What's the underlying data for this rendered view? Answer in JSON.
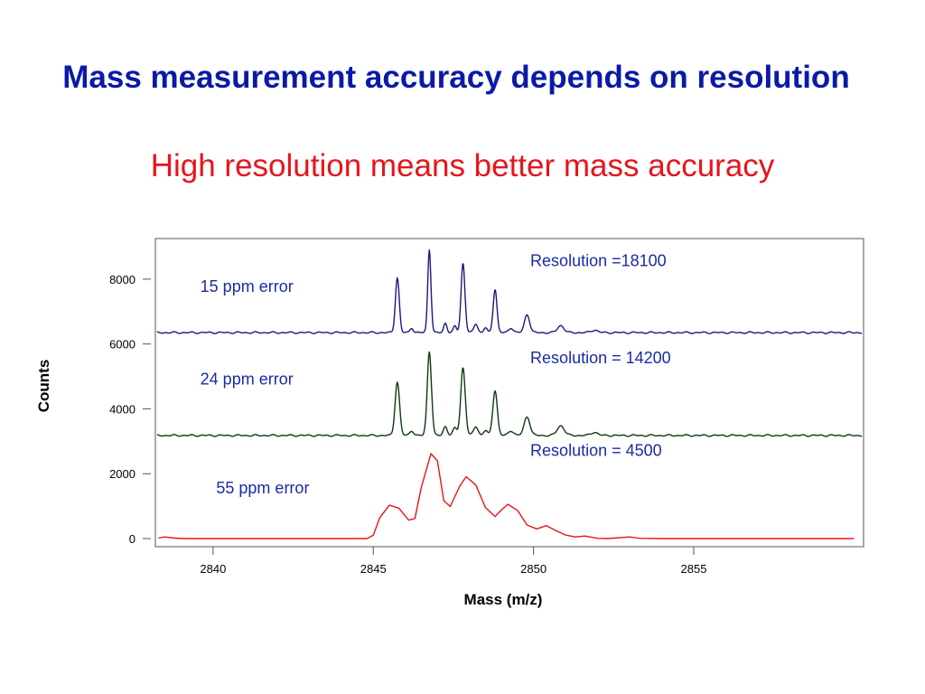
{
  "slide": {
    "title": "Mass measurement accuracy depends on resolution",
    "subtitle": "High resolution means better mass accuracy"
  },
  "colors": {
    "title": "#0a1aa8",
    "subtitle": "#e8141c",
    "series_top": "#1a1a80",
    "series_mid": "#0f3a0f",
    "series_bottom": "#e8141c",
    "annotation": "#1a2aa8",
    "axis": "#555555"
  },
  "chart_data": {
    "type": "line",
    "xlabel": "Mass (m/z)",
    "ylabel": "Counts",
    "xlim": [
      2838.2,
      2860.3
    ],
    "ylim": [
      -250,
      9250
    ],
    "x_ticks": [
      "2840",
      "2845",
      "2850",
      "2855"
    ],
    "x_tick_values": [
      2840,
      2845,
      2850,
      2855
    ],
    "y_ticks": [
      "0",
      "2000",
      "4000",
      "6000",
      "8000"
    ],
    "y_tick_values": [
      0,
      2000,
      4000,
      6000,
      8000
    ],
    "grid": false,
    "annotations": [
      {
        "text": "Resolution =18100",
        "x": 2849.9,
        "y": 8400
      },
      {
        "text": "15 ppm error",
        "x": 2839.6,
        "y": 7600
      },
      {
        "text": "Resolution = 14200",
        "x": 2849.9,
        "y": 5400
      },
      {
        "text": "24 ppm error",
        "x": 2839.6,
        "y": 4750
      },
      {
        "text": "Resolution = 4500",
        "x": 2849.9,
        "y": 2550
      },
      {
        "text": "55 ppm error",
        "x": 2840.1,
        "y": 1400
      }
    ],
    "series": [
      {
        "key": "top",
        "baseline": 6350,
        "noise": 30,
        "peaks": [
          {
            "x": 2845.75,
            "h": 1700,
            "w": 0.06
          },
          {
            "x": 2846.2,
            "h": 150,
            "w": 0.05
          },
          {
            "x": 2846.75,
            "h": 2580,
            "w": 0.05
          },
          {
            "x": 2847.25,
            "h": 300,
            "w": 0.05
          },
          {
            "x": 2847.55,
            "h": 200,
            "w": 0.05
          },
          {
            "x": 2847.8,
            "h": 2150,
            "w": 0.06
          },
          {
            "x": 2848.2,
            "h": 280,
            "w": 0.06
          },
          {
            "x": 2848.5,
            "h": 150,
            "w": 0.05
          },
          {
            "x": 2848.8,
            "h": 1350,
            "w": 0.06
          },
          {
            "x": 2849.3,
            "h": 150,
            "w": 0.07
          },
          {
            "x": 2849.8,
            "h": 560,
            "w": 0.08
          },
          {
            "x": 2850.85,
            "h": 220,
            "w": 0.1
          },
          {
            "x": 2851.9,
            "h": 80,
            "w": 0.1
          }
        ]
      },
      {
        "key": "mid",
        "baseline": 3180,
        "noise": 30,
        "peaks": [
          {
            "x": 2845.75,
            "h": 1650,
            "w": 0.07
          },
          {
            "x": 2846.2,
            "h": 150,
            "w": 0.06
          },
          {
            "x": 2846.75,
            "h": 2600,
            "w": 0.065
          },
          {
            "x": 2847.25,
            "h": 280,
            "w": 0.06
          },
          {
            "x": 2847.55,
            "h": 230,
            "w": 0.06
          },
          {
            "x": 2847.8,
            "h": 2100,
            "w": 0.07
          },
          {
            "x": 2848.2,
            "h": 280,
            "w": 0.07
          },
          {
            "x": 2848.5,
            "h": 150,
            "w": 0.06
          },
          {
            "x": 2848.8,
            "h": 1400,
            "w": 0.07
          },
          {
            "x": 2849.3,
            "h": 150,
            "w": 0.08
          },
          {
            "x": 2849.8,
            "h": 580,
            "w": 0.09
          },
          {
            "x": 2850.85,
            "h": 300,
            "w": 0.11
          },
          {
            "x": 2851.9,
            "h": 100,
            "w": 0.1
          }
        ]
      },
      {
        "key": "bottom",
        "x": [
          2838.3,
          2838.5,
          2838.8,
          2839.1,
          2840.0,
          2841.0,
          2842.0,
          2843.0,
          2844.0,
          2844.8,
          2845.0,
          2845.2,
          2845.5,
          2845.8,
          2846.1,
          2846.3,
          2846.5,
          2846.8,
          2847.0,
          2847.2,
          2847.4,
          2847.7,
          2847.9,
          2848.2,
          2848.5,
          2848.8,
          2849.0,
          2849.2,
          2849.5,
          2849.8,
          2850.1,
          2850.4,
          2850.7,
          2851.0,
          2851.3,
          2851.6,
          2852.0,
          2852.3,
          2853.0,
          2853.3,
          2854.0,
          2855.0,
          2856.0,
          2857.0,
          2858.0,
          2859.0,
          2860.0
        ],
        "y": [
          20,
          50,
          15,
          0,
          0,
          0,
          0,
          0,
          0,
          0,
          100,
          640,
          1030,
          940,
          570,
          620,
          1580,
          2620,
          2400,
          1170,
          990,
          1620,
          1910,
          1650,
          960,
          680,
          880,
          1060,
          870,
          420,
          300,
          400,
          250,
          110,
          50,
          80,
          10,
          0,
          50,
          10,
          0,
          0,
          0,
          0,
          0,
          0,
          0
        ]
      }
    ]
  }
}
